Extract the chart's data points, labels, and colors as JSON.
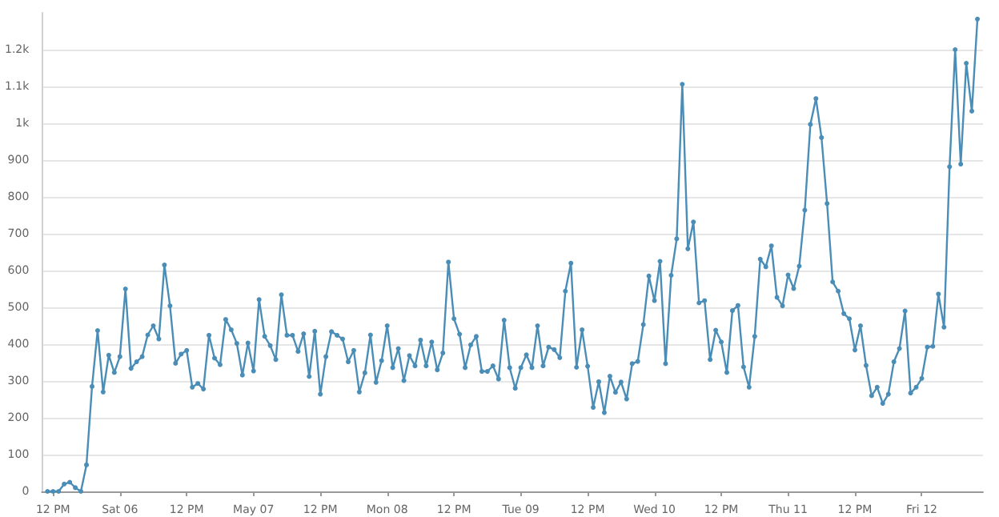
{
  "chart_data": {
    "type": "line",
    "x": [
      "--05-05T11:00",
      "--05-05T12:00",
      "--05-05T13:00",
      "--05-05T14:00",
      "--05-05T15:00",
      "--05-05T16:00",
      "--05-05T17:00",
      "--05-05T18:00",
      "--05-05T19:00",
      "--05-05T20:00",
      "--05-05T21:00",
      "--05-05T22:00",
      "--05-05T23:00",
      "--05-06T00:00",
      "--05-06T01:00",
      "--05-06T02:00",
      "--05-06T03:00",
      "--05-06T04:00",
      "--05-06T05:00",
      "--05-06T06:00",
      "--05-06T07:00",
      "--05-06T08:00",
      "--05-06T09:00",
      "--05-06T10:00",
      "--05-06T11:00",
      "--05-06T12:00",
      "--05-06T13:00",
      "--05-06T14:00",
      "--05-06T15:00",
      "--05-06T16:00",
      "--05-06T17:00",
      "--05-06T18:00",
      "--05-06T19:00",
      "--05-06T20:00",
      "--05-06T21:00",
      "--05-06T22:00",
      "--05-06T23:00",
      "--05-07T00:00",
      "--05-07T01:00",
      "--05-07T02:00",
      "--05-07T03:00",
      "--05-07T04:00",
      "--05-07T05:00",
      "--05-07T06:00",
      "--05-07T07:00",
      "--05-07T08:00",
      "--05-07T09:00",
      "--05-07T10:00",
      "--05-07T11:00",
      "--05-07T12:00",
      "--05-07T13:00",
      "--05-07T14:00",
      "--05-07T15:00",
      "--05-07T16:00",
      "--05-07T17:00",
      "--05-07T18:00",
      "--05-07T19:00",
      "--05-07T20:00",
      "--05-07T21:00",
      "--05-07T22:00",
      "--05-07T23:00",
      "--05-08T00:00",
      "--05-08T01:00",
      "--05-08T02:00",
      "--05-08T03:00",
      "--05-08T04:00",
      "--05-08T05:00",
      "--05-08T06:00",
      "--05-08T07:00",
      "--05-08T08:00",
      "--05-08T09:00",
      "--05-08T10:00",
      "--05-08T11:00",
      "--05-08T12:00",
      "--05-08T13:00",
      "--05-08T14:00",
      "--05-08T15:00",
      "--05-08T16:00",
      "--05-08T17:00",
      "--05-08T18:00",
      "--05-08T19:00",
      "--05-08T20:00",
      "--05-08T21:00",
      "--05-08T22:00",
      "--05-08T23:00",
      "--05-09T00:00",
      "--05-09T01:00",
      "--05-09T02:00",
      "--05-09T03:00",
      "--05-09T04:00",
      "--05-09T05:00",
      "--05-09T06:00",
      "--05-09T07:00",
      "--05-09T08:00",
      "--05-09T09:00",
      "--05-09T10:00",
      "--05-09T11:00",
      "--05-09T12:00",
      "--05-09T13:00",
      "--05-09T14:00",
      "--05-09T15:00",
      "--05-09T16:00",
      "--05-09T17:00",
      "--05-09T18:00",
      "--05-09T19:00",
      "--05-09T20:00",
      "--05-09T21:00",
      "--05-09T22:00",
      "--05-09T23:00",
      "--05-10T00:00",
      "--05-10T01:00",
      "--05-10T02:00",
      "--05-10T03:00",
      "--05-10T04:00",
      "--05-10T05:00",
      "--05-10T06:00",
      "--05-10T07:00",
      "--05-10T08:00",
      "--05-10T09:00",
      "--05-10T10:00",
      "--05-10T11:00",
      "--05-10T12:00",
      "--05-10T13:00",
      "--05-10T14:00",
      "--05-10T15:00",
      "--05-10T16:00",
      "--05-10T17:00",
      "--05-10T18:00",
      "--05-10T19:00",
      "--05-10T20:00",
      "--05-10T21:00",
      "--05-10T22:00",
      "--05-10T23:00",
      "--05-11T00:00",
      "--05-11T01:00",
      "--05-11T02:00",
      "--05-11T03:00",
      "--05-11T04:00",
      "--05-11T05:00",
      "--05-11T06:00",
      "--05-11T07:00",
      "--05-11T08:00",
      "--05-11T09:00",
      "--05-11T10:00",
      "--05-11T11:00",
      "--05-11T12:00",
      "--05-11T13:00",
      "--05-11T14:00",
      "--05-11T15:00",
      "--05-11T16:00",
      "--05-11T17:00",
      "--05-11T18:00",
      "--05-11T19:00",
      "--05-11T20:00",
      "--05-11T21:00",
      "--05-11T22:00",
      "--05-11T23:00",
      "--05-12T00:00",
      "--05-12T01:00",
      "--05-12T02:00",
      "--05-12T03:00",
      "--05-12T04:00",
      "--05-12T05:00",
      "--05-12T06:00",
      "--05-12T07:00",
      "--05-12T08:00",
      "--05-12T09:00",
      "--05-12T10:00"
    ],
    "series": [
      {
        "color": "#4a8db7",
        "values": [
          0,
          0,
          0,
          20,
          25,
          10,
          0,
          72,
          285,
          437,
          270,
          370,
          323,
          366,
          550,
          334,
          352,
          366,
          425,
          450,
          414,
          615,
          504,
          348,
          373,
          383,
          283,
          293,
          278,
          424,
          362,
          344,
          467,
          439,
          402,
          316,
          403,
          327,
          521,
          421,
          396,
          358,
          534,
          424,
          424,
          380,
          428,
          312,
          435,
          264,
          366,
          434,
          424,
          414,
          352,
          383,
          270,
          322,
          425,
          296,
          355,
          450,
          336,
          388,
          301,
          369,
          341,
          411,
          341,
          406,
          330,
          376,
          623,
          469,
          427,
          336,
          398,
          421,
          326,
          326,
          341,
          305,
          465,
          336,
          280,
          336,
          371,
          336,
          450,
          341,
          392,
          385,
          363,
          544,
          620,
          337,
          439,
          340,
          228,
          298,
          214,
          313,
          269,
          297,
          251,
          347,
          353,
          453,
          585,
          518,
          625,
          347,
          587,
          686,
          1106,
          659,
          732,
          512,
          518,
          358,
          438,
          406,
          323,
          491,
          505,
          338,
          283,
          421,
          631,
          610,
          667,
          527,
          504,
          588,
          551,
          612,
          764,
          997,
          1067,
          961,
          782,
          569,
          544,
          483,
          469,
          384,
          450,
          342,
          260,
          283,
          239,
          264,
          352,
          388,
          490,
          267,
          283,
          307,
          392,
          394,
          536,
          446,
          882,
          1200,
          889,
          1163,
          1033,
          1283
        ]
      }
    ],
    "xlim": [
      "--05-05T10:00",
      "--05-12T11:00"
    ],
    "xticks": [
      {
        "value": "--05-05T12:00",
        "label": "12 PM"
      },
      {
        "value": "--05-06T00:00",
        "label": "Sat 06"
      },
      {
        "value": "--05-06T12:00",
        "label": "12 PM"
      },
      {
        "value": "--05-07T00:00",
        "label": "May 07"
      },
      {
        "value": "--05-07T12:00",
        "label": "12 PM"
      },
      {
        "value": "--05-08T00:00",
        "label": "Mon 08"
      },
      {
        "value": "--05-08T12:00",
        "label": "12 PM"
      },
      {
        "value": "--05-09T00:00",
        "label": "Tue 09"
      },
      {
        "value": "--05-09T12:00",
        "label": "12 PM"
      },
      {
        "value": "--05-10T00:00",
        "label": "Wed 10"
      },
      {
        "value": "--05-10T12:00",
        "label": "12 PM"
      },
      {
        "value": "--05-11T00:00",
        "label": "Thu 11"
      },
      {
        "value": "--05-11T12:00",
        "label": "12 PM"
      },
      {
        "value": "--05-12T00:00",
        "label": "Fri 12"
      }
    ],
    "ylim": [
      0,
      1300
    ],
    "yticks": [
      0,
      100,
      200,
      300,
      400,
      500,
      600,
      700,
      800,
      900,
      {
        "value": 1000,
        "label": "1k"
      },
      {
        "value": 1100,
        "label": "1.1k"
      },
      {
        "value": 1200,
        "label": "1.2k"
      }
    ],
    "grid": "y",
    "marker": "circle",
    "line_style": "solid"
  }
}
